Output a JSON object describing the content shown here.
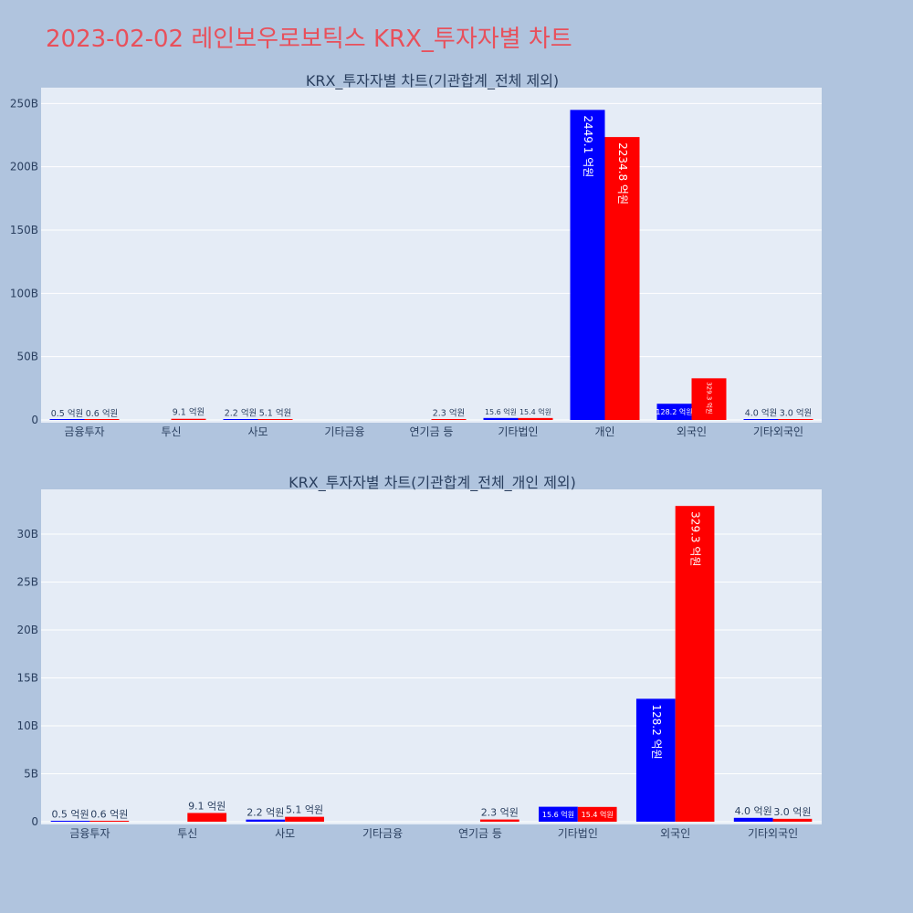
{
  "page": {
    "title": "2023-02-02 레인보우로보틱스 KRX_투자자별 차트"
  },
  "chart_data": [
    {
      "type": "bar",
      "title": "KRX_투자자별 차트(기관합계_전체 제외)",
      "categories": [
        "금융투자",
        "투신",
        "사모",
        "기타금융",
        "연기금 등",
        "기타법인",
        "개인",
        "외국인",
        "기타외국인"
      ],
      "series": [
        {
          "color": "#0000ff",
          "values": [
            50000000,
            null,
            220000000,
            null,
            null,
            1560000000,
            244910000000,
            12820000000,
            400000000
          ],
          "labels": [
            "0.5 억원",
            "",
            "2.2 억원",
            "",
            "",
            "15.6 억원",
            "2449.1 억원",
            "128.2 억원",
            "4.0 억원"
          ]
        },
        {
          "color": "#ff0000",
          "values": [
            60000000,
            910000000,
            510000000,
            null,
            230000000,
            1540000000,
            223480000000,
            32930000000,
            300000000
          ],
          "labels": [
            "0.6 억원",
            "9.1 억원",
            "5.1 억원",
            "",
            "2.3 억원",
            "15.4 억원",
            "2234.8 억원",
            "329.3 억원",
            "3.0 억원"
          ]
        }
      ],
      "ylim": [
        0,
        262500000000
      ],
      "yticks": [
        0,
        50000000000,
        100000000000,
        150000000000,
        200000000000,
        250000000000
      ],
      "ytick_labels": [
        "0",
        "50B",
        "100B",
        "150B",
        "200B",
        "250B"
      ],
      "grid": true
    },
    {
      "type": "bar",
      "title": "KRX_투자자별 차트(기관합계_전체_개인 제외)",
      "categories": [
        "금융투자",
        "투신",
        "사모",
        "기타금융",
        "연기금 등",
        "기타법인",
        "외국인",
        "기타외국인"
      ],
      "series": [
        {
          "color": "#0000ff",
          "values": [
            50000000,
            null,
            220000000,
            null,
            null,
            1560000000,
            12820000000,
            400000000
          ],
          "labels": [
            "0.5 억원",
            "",
            "2.2 억원",
            "",
            "",
            "15.6 억원",
            "128.2 억원",
            "4.0 억원"
          ]
        },
        {
          "color": "#ff0000",
          "values": [
            60000000,
            910000000,
            510000000,
            null,
            230000000,
            1540000000,
            32930000000,
            300000000
          ],
          "labels": [
            "0.6 억원",
            "9.1 억원",
            "5.1 억원",
            "",
            "2.3 억원",
            "15.4 억원",
            "329.3 억원",
            "3.0 억원"
          ]
        }
      ],
      "ylim": [
        0,
        34660000000
      ],
      "yticks": [
        0,
        5000000000,
        10000000000,
        15000000000,
        20000000000,
        25000000000,
        30000000000
      ],
      "ytick_labels": [
        "0",
        "5B",
        "10B",
        "15B",
        "20B",
        "25B",
        "30B"
      ],
      "grid": true
    }
  ]
}
